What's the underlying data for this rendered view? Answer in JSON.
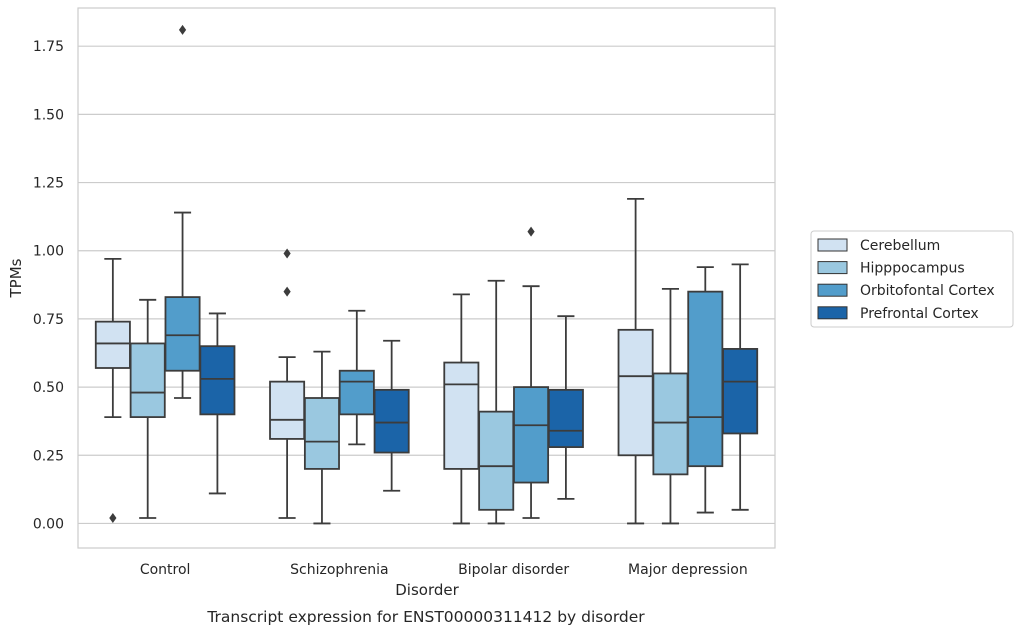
{
  "chart_data": {
    "type": "box",
    "caption": "Transcript expression for ENST00000311412 by disorder",
    "xlabel": "Disorder",
    "ylabel": "TPMs",
    "ylim": [
      -0.09,
      1.89
    ],
    "yticks": [
      "0.00",
      "0.25",
      "0.50",
      "0.75",
      "1.00",
      "1.25",
      "1.50",
      "1.75"
    ],
    "grid": true,
    "legend_position": "right",
    "categories": [
      "Control",
      "Schizophrenia",
      "Bipolar disorder",
      "Major depression"
    ],
    "series": [
      {
        "name": "Cerebellum",
        "color": "#d1e2f2",
        "boxes": [
          {
            "whislo": 0.39,
            "q1": 0.57,
            "med": 0.66,
            "q3": 0.74,
            "whishi": 0.97,
            "fliers": [
              0.02
            ]
          },
          {
            "whislo": 0.02,
            "q1": 0.31,
            "med": 0.38,
            "q3": 0.52,
            "whishi": 0.61,
            "fliers": [
              0.85,
              0.99
            ]
          },
          {
            "whislo": 0.0,
            "q1": 0.2,
            "med": 0.51,
            "q3": 0.59,
            "whishi": 0.84,
            "fliers": []
          },
          {
            "whislo": 0.0,
            "q1": 0.25,
            "med": 0.54,
            "q3": 0.71,
            "whishi": 1.19,
            "fliers": []
          }
        ]
      },
      {
        "name": "Hipppocampus",
        "color": "#9ac8e0",
        "boxes": [
          {
            "whislo": 0.02,
            "q1": 0.39,
            "med": 0.48,
            "q3": 0.66,
            "whishi": 0.82,
            "fliers": []
          },
          {
            "whislo": 0.0,
            "q1": 0.2,
            "med": 0.3,
            "q3": 0.46,
            "whishi": 0.63,
            "fliers": []
          },
          {
            "whislo": 0.0,
            "q1": 0.05,
            "med": 0.21,
            "q3": 0.41,
            "whishi": 0.89,
            "fliers": []
          },
          {
            "whislo": 0.0,
            "q1": 0.18,
            "med": 0.37,
            "q3": 0.55,
            "whishi": 0.86,
            "fliers": []
          }
        ]
      },
      {
        "name": "Orbitofontal Cortex",
        "color": "#529dcb",
        "boxes": [
          {
            "whislo": 0.46,
            "q1": 0.56,
            "med": 0.69,
            "q3": 0.83,
            "whishi": 1.14,
            "fliers": [
              1.81
            ]
          },
          {
            "whislo": 0.29,
            "q1": 0.4,
            "med": 0.52,
            "q3": 0.56,
            "whishi": 0.78,
            "fliers": []
          },
          {
            "whislo": 0.02,
            "q1": 0.15,
            "med": 0.36,
            "q3": 0.5,
            "whishi": 0.87,
            "fliers": [
              1.07
            ]
          },
          {
            "whislo": 0.04,
            "q1": 0.21,
            "med": 0.39,
            "q3": 0.85,
            "whishi": 0.94,
            "fliers": []
          }
        ]
      },
      {
        "name": "Prefrontal Cortex",
        "color": "#1b64a8",
        "boxes": [
          {
            "whislo": 0.11,
            "q1": 0.4,
            "med": 0.53,
            "q3": 0.65,
            "whishi": 0.77,
            "fliers": []
          },
          {
            "whislo": 0.12,
            "q1": 0.26,
            "med": 0.37,
            "q3": 0.49,
            "whishi": 0.67,
            "fliers": []
          },
          {
            "whislo": 0.09,
            "q1": 0.28,
            "med": 0.34,
            "q3": 0.49,
            "whishi": 0.76,
            "fliers": []
          },
          {
            "whislo": 0.05,
            "q1": 0.33,
            "med": 0.52,
            "q3": 0.64,
            "whishi": 0.95,
            "fliers": []
          }
        ]
      }
    ]
  },
  "colors": {
    "grid": "#cccccc",
    "frame": "#cccccc",
    "line": "#3c3c3c"
  }
}
